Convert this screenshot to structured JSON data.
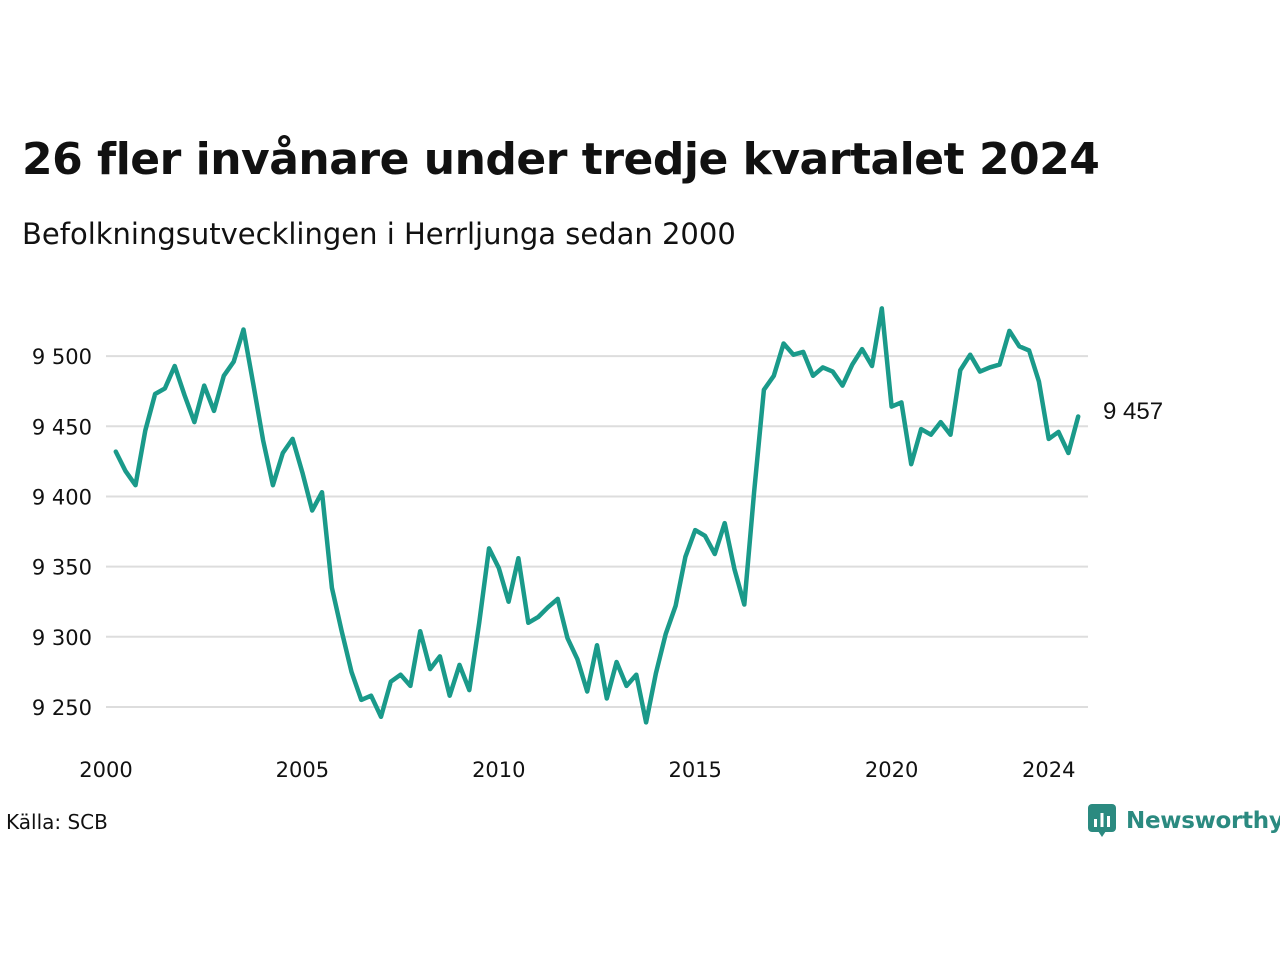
{
  "title": "26 fler invånare under tredje kvartalet 2024",
  "subtitle": "Befolkningsutvecklingen i Herrljunga sedan 2000",
  "source": "Källa: SCB",
  "brand": "Newsworthy",
  "colors": {
    "line": "#1a9a8a",
    "grid": "#dddddd",
    "brand": "#2b8a80"
  },
  "chart_data": {
    "type": "line",
    "title": "26 fler invånare under tredje kvartalet 2024",
    "subtitle": "Befolkningsutvecklingen i Herrljunga sedan 2000",
    "xlabel": "",
    "ylabel": "",
    "xlim": [
      2000,
      2024.75
    ],
    "ylim": [
      9235,
      9540
    ],
    "yticks": [
      9250,
      9300,
      9350,
      9400,
      9450,
      9500
    ],
    "ytick_labels": [
      "9 250",
      "9 300",
      "9 350",
      "9 400",
      "9 450",
      "9 500"
    ],
    "xticks": [
      2000,
      2005,
      2010,
      2015,
      2020,
      2024
    ],
    "xtick_labels": [
      "2000",
      "2005",
      "2010",
      "2015",
      "2020",
      "2024"
    ],
    "grid": "horizontal",
    "end_label": "9 457",
    "series": [
      {
        "x": [
          2000.25,
          2000.5,
          2000.75,
          2001.0,
          2001.25,
          2001.5,
          2001.75,
          2002.0,
          2002.25,
          2002.5,
          2002.75,
          2003.0,
          2003.25,
          2003.5,
          2003.75,
          2004.0,
          2004.25,
          2004.5,
          2004.75,
          2005.0,
          2005.25,
          2005.5,
          2005.75,
          2006.0,
          2006.25,
          2006.5,
          2006.75,
          2007.0,
          2007.25,
          2007.5,
          2007.75,
          2008.0,
          2008.25,
          2008.5,
          2008.75,
          2009.0,
          2009.25,
          2009.5,
          2009.75,
          2010.0,
          2010.25,
          2010.5,
          2010.75,
          2011.0,
          2011.25,
          2011.5,
          2011.75,
          2012.0,
          2012.25,
          2012.5,
          2012.75,
          2013.0,
          2013.25,
          2013.5,
          2013.75,
          2014.0,
          2014.25,
          2014.5,
          2014.75,
          2015.0,
          2015.25,
          2015.5,
          2015.75,
          2016.0,
          2016.25,
          2016.5,
          2016.75,
          2017.0,
          2017.25,
          2017.5,
          2017.75,
          2018.0,
          2018.25,
          2018.5,
          2018.75,
          2019.0,
          2019.25,
          2019.5,
          2019.75,
          2020.0,
          2020.25,
          2020.5,
          2020.75,
          2021.0,
          2021.25,
          2021.5,
          2021.75,
          2022.0,
          2022.25,
          2022.5,
          2022.75,
          2023.0,
          2023.25,
          2023.5,
          2023.75,
          2024.0,
          2024.25,
          2024.5,
          2024.75
        ],
        "values": [
          9432,
          9418,
          9408,
          9447,
          9473,
          9477,
          9493,
          9472,
          9453,
          9479,
          9461,
          9486,
          9496,
          9519,
          9480,
          9440,
          9408,
          9431,
          9441,
          9417,
          9390,
          9403,
          9335,
          9304,
          9275,
          9255,
          9258,
          9243,
          9268,
          9273,
          9265,
          9304,
          9277,
          9286,
          9258,
          9280,
          9262,
          9310,
          9363,
          9349,
          9325,
          9356,
          9310,
          9314,
          9321,
          9327,
          9299,
          9284,
          9261,
          9294,
          9256,
          9282,
          9265,
          9273,
          9239,
          9274,
          9302,
          9322,
          9357,
          9376,
          9372,
          9359,
          9381,
          9348,
          9323,
          9403,
          9476,
          9486,
          9509,
          9501,
          9503,
          9486,
          9492,
          9489,
          9479,
          9494,
          9505,
          9493,
          9534,
          9464,
          9467,
          9423,
          9448,
          9444,
          9453,
          9444,
          9490,
          9501,
          9489,
          9492,
          9494,
          9518,
          9507,
          9504,
          9482,
          9441,
          9446,
          9431,
          9457
        ]
      }
    ]
  }
}
